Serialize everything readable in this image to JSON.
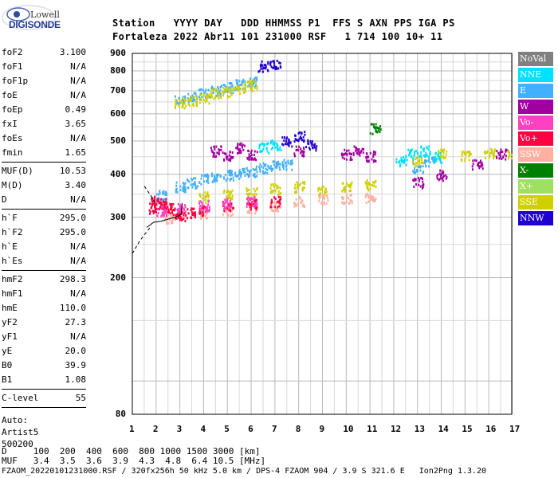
{
  "logo": {
    "top": "Lowell",
    "bottom": "DIGISONDE"
  },
  "header": {
    "line1": "Station   YYYY DAY   DDD HHMMSS P1  FFS S AXN PPS IGA PS",
    "line2": "Fortaleza 2022 Abr11 101 231000 RSF   1 714 100 10+ 11"
  },
  "params": {
    "g1": [
      {
        "label": "foF2",
        "value": "3.100"
      },
      {
        "label": "foF1",
        "value": "N/A"
      },
      {
        "label": "foF1p",
        "value": "N/A"
      },
      {
        "label": "foE",
        "value": "N/A"
      },
      {
        "label": "foEp",
        "value": "0.49"
      },
      {
        "label": "fxI",
        "value": "3.65"
      },
      {
        "label": "foEs",
        "value": "N/A"
      },
      {
        "label": "fmin",
        "value": "1.65"
      }
    ],
    "g2": [
      {
        "label": "MUF(D)",
        "value": "10.53"
      },
      {
        "label": "M(D)",
        "value": "3.40"
      },
      {
        "label": "D",
        "value": "N/A"
      }
    ],
    "g3": [
      {
        "label": "h`F",
        "value": "295.0"
      },
      {
        "label": "h`F2",
        "value": "295.0"
      },
      {
        "label": "h`E",
        "value": "N/A"
      },
      {
        "label": "h`Es",
        "value": "N/A"
      }
    ],
    "g4": [
      {
        "label": "hmF2",
        "value": "298.3"
      },
      {
        "label": "hmF1",
        "value": "N/A"
      },
      {
        "label": "hmE",
        "value": "110.0"
      },
      {
        "label": "yF2",
        "value": "27.3"
      },
      {
        "label": "yF1",
        "value": "N/A"
      },
      {
        "label": "yE",
        "value": "20.0"
      },
      {
        "label": "B0",
        "value": "39.9"
      },
      {
        "label": "B1",
        "value": "1.08"
      }
    ],
    "g5": [
      {
        "label": "C-level",
        "value": "55"
      }
    ],
    "auto": [
      "Auto:",
      "Artist5",
      "500200"
    ]
  },
  "footer": {
    "d_line": "D     100  200  400  600  800 1000 1500 3000 [km]",
    "muf_line": "MUF   3.4  3.5  3.6  3.9  4.3  4.8  6.4 10.5 [MHz]",
    "file_line": "FZAOM_20220101231000.RSF / 320fx256h 50 kHz 5.0 km / DPS-4 FZAOM 904 / 3.9 S 321.6 E   Ion2Png 1.3.20"
  },
  "legend": [
    {
      "label": "NoVal",
      "color": "#808080"
    },
    {
      "label": "NNE",
      "color": "#00e0ff"
    },
    {
      "label": "E",
      "color": "#40b0ff"
    },
    {
      "label": "W",
      "color": "#a000a0"
    },
    {
      "label": "Vo-",
      "color": "#ff40c0"
    },
    {
      "label": "Vo+",
      "color": "#ff0040"
    },
    {
      "label": "SSW",
      "color": "#ffb0a0"
    },
    {
      "label": "X-",
      "color": "#008000"
    },
    {
      "label": "X+",
      "color": "#a0e060"
    },
    {
      "label": "SSE",
      "color": "#d0d000"
    },
    {
      "label": "NNW",
      "color": "#2000d0"
    }
  ],
  "chart_data": {
    "type": "scatter",
    "title": "",
    "xlabel": "",
    "ylabel": "",
    "xlim": [
      1,
      17
    ],
    "ylim": [
      80,
      900
    ],
    "yscale": "log",
    "x_ticks": [
      "1",
      "2",
      "3",
      "4",
      "5",
      "6",
      "7",
      "8",
      "9",
      "10",
      "11",
      "12",
      "13",
      "14",
      "15",
      "16",
      "17"
    ],
    "y_ticks": [
      "80",
      "200",
      "300",
      "400",
      "500",
      "600",
      "700",
      "800",
      "900"
    ],
    "grid": true,
    "legend_position": "right",
    "series": [
      {
        "name": "E",
        "color": "#40b0ff",
        "points": [
          [
            3.0,
            660
          ],
          [
            3.5,
            675
          ],
          [
            4.0,
            690
          ],
          [
            4.5,
            705
          ],
          [
            5.0,
            720
          ],
          [
            5.5,
            735
          ],
          [
            6.0,
            745
          ],
          [
            2.2,
            350
          ],
          [
            3,
            370
          ],
          [
            3.5,
            380
          ],
          [
            4,
            390
          ],
          [
            4.5,
            395
          ],
          [
            5,
            400
          ],
          [
            5.5,
            405
          ],
          [
            6,
            410
          ],
          [
            6.5,
            420
          ],
          [
            7,
            425
          ],
          [
            7.5,
            430
          ],
          [
            13,
            420
          ],
          [
            13.5,
            440
          ]
        ]
      },
      {
        "name": "SSE",
        "color": "#d0d000",
        "points": [
          [
            3.0,
            650
          ],
          [
            3.5,
            660
          ],
          [
            4.0,
            670
          ],
          [
            4.5,
            690
          ],
          [
            5.0,
            700
          ],
          [
            5.5,
            715
          ],
          [
            6,
            730
          ],
          [
            4,
            345
          ],
          [
            5,
            350
          ],
          [
            6,
            355
          ],
          [
            7,
            365
          ],
          [
            8,
            370
          ],
          [
            9,
            360
          ],
          [
            10,
            370
          ],
          [
            11,
            375
          ],
          [
            13,
            440
          ],
          [
            14,
            460
          ],
          [
            15,
            455
          ],
          [
            16,
            465
          ],
          [
            17,
            460
          ]
        ]
      },
      {
        "name": "SSW",
        "color": "#ffb0a0",
        "points": [
          [
            2.5,
            300
          ],
          [
            3,
            305
          ],
          [
            4,
            310
          ],
          [
            5,
            315
          ],
          [
            6,
            320
          ],
          [
            7,
            325
          ],
          [
            8,
            335
          ],
          [
            9,
            340
          ],
          [
            10,
            340
          ],
          [
            11,
            345
          ]
        ]
      },
      {
        "name": "Vo+",
        "color": "#ff0040",
        "points": [
          [
            1.9,
            320
          ],
          [
            2.0,
            335
          ],
          [
            2.2,
            330
          ],
          [
            2.5,
            320
          ],
          [
            2.8,
            310
          ],
          [
            3,
            305
          ],
          [
            3.5,
            310
          ],
          [
            4,
            315
          ],
          [
            5,
            325
          ],
          [
            6,
            330
          ],
          [
            7,
            335
          ]
        ]
      },
      {
        "name": "Vo-",
        "color": "#ff40c0",
        "points": [
          [
            2.2,
            315
          ],
          [
            3,
            320
          ],
          [
            4,
            325
          ],
          [
            5,
            330
          ],
          [
            6,
            335
          ]
        ]
      },
      {
        "name": "W",
        "color": "#a000a0",
        "points": [
          [
            4.5,
            470
          ],
          [
            5,
            455
          ],
          [
            5.5,
            480
          ],
          [
            6,
            460
          ],
          [
            8,
            470
          ],
          [
            10,
            460
          ],
          [
            10.5,
            470
          ],
          [
            11,
            455
          ],
          [
            13,
            380
          ],
          [
            14,
            400
          ],
          [
            15.5,
            430
          ],
          [
            16.5,
            460
          ]
        ]
      },
      {
        "name": "NNE",
        "color": "#00e0ff",
        "points": [
          [
            12.3,
            440
          ],
          [
            12.8,
            460
          ],
          [
            13.3,
            470
          ],
          [
            13.8,
            450
          ],
          [
            6.5,
            480
          ],
          [
            7,
            490
          ]
        ]
      },
      {
        "name": "NNW",
        "color": "#2000d0",
        "points": [
          [
            7.5,
            500
          ],
          [
            8,
            520
          ],
          [
            8.5,
            490
          ],
          [
            6.5,
            830
          ],
          [
            7,
            835
          ]
        ]
      },
      {
        "name": "X-",
        "color": "#008000",
        "points": [
          [
            11.2,
            545
          ]
        ]
      }
    ],
    "curves": [
      {
        "name": "",
        "style": "solid",
        "points": [
          [
            1.6,
            280
          ],
          [
            1.9,
            290
          ],
          [
            2.2,
            292
          ],
          [
            2.5,
            296
          ],
          [
            2.8,
            300
          ],
          [
            3.05,
            305
          ],
          [
            3.1,
            330
          ]
        ]
      },
      {
        "name": "",
        "style": "dashed",
        "points": [
          [
            1.0,
            235
          ],
          [
            1.3,
            255
          ],
          [
            1.6,
            272
          ],
          [
            1.8,
            283
          ]
        ]
      },
      {
        "name": "",
        "style": "dashed",
        "points": [
          [
            1.95,
            330
          ],
          [
            1.8,
            345
          ],
          [
            1.5,
            370
          ]
        ]
      }
    ]
  }
}
